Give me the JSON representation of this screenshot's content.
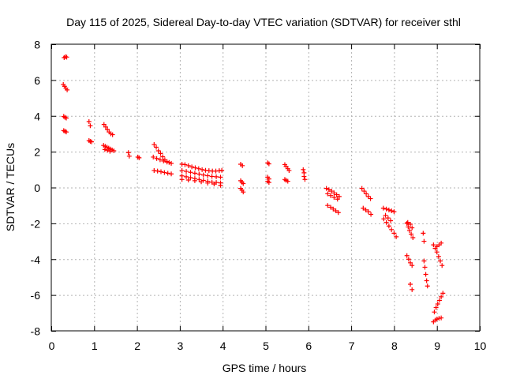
{
  "chart_data": {
    "type": "scatter",
    "title": "Day 115 of 2025, Sidereal Day-to-day VTEC variation (SDTVAR) for receiver sthl",
    "xlabel": "GPS time / hours",
    "ylabel": "SDTVAR / TECUs",
    "xlim": [
      0,
      10
    ],
    "ylim": [
      -8,
      8
    ],
    "xticks": [
      0,
      1,
      2,
      3,
      4,
      5,
      6,
      7,
      8,
      9,
      10
    ],
    "yticks": [
      -8,
      -6,
      -4,
      -2,
      0,
      2,
      4,
      6,
      8
    ],
    "grid": true,
    "marker": "+",
    "colors": {
      "points": "#ff0000",
      "grid": "#b3b3b3",
      "axis": "#000000"
    },
    "series": [
      {
        "name": "sdtvar",
        "points": [
          [
            0.3,
            7.25
          ],
          [
            0.33,
            7.3
          ],
          [
            0.36,
            7.28
          ],
          [
            0.28,
            5.75
          ],
          [
            0.31,
            5.65
          ],
          [
            0.34,
            5.55
          ],
          [
            0.37,
            5.45
          ],
          [
            0.29,
            3.97
          ],
          [
            0.32,
            3.92
          ],
          [
            0.35,
            3.88
          ],
          [
            0.29,
            3.18
          ],
          [
            0.32,
            3.14
          ],
          [
            0.35,
            3.1
          ],
          [
            0.88,
            3.68
          ],
          [
            0.91,
            3.45
          ],
          [
            0.88,
            2.62
          ],
          [
            0.91,
            2.58
          ],
          [
            0.94,
            2.55
          ],
          [
            1.23,
            3.52
          ],
          [
            1.27,
            3.38
          ],
          [
            1.31,
            3.24
          ],
          [
            1.35,
            3.1
          ],
          [
            1.39,
            3.0
          ],
          [
            1.43,
            2.95
          ],
          [
            1.22,
            2.35
          ],
          [
            1.26,
            2.3
          ],
          [
            1.3,
            2.25
          ],
          [
            1.34,
            2.2
          ],
          [
            1.38,
            2.15
          ],
          [
            1.42,
            2.1
          ],
          [
            1.46,
            2.05
          ],
          [
            1.25,
            2.12
          ],
          [
            1.31,
            2.08
          ],
          [
            1.37,
            2.02
          ],
          [
            1.8,
            1.95
          ],
          [
            1.82,
            1.75
          ],
          [
            2.02,
            1.7
          ],
          [
            2.05,
            1.66
          ],
          [
            2.4,
            2.4
          ],
          [
            2.45,
            2.25
          ],
          [
            2.5,
            2.05
          ],
          [
            2.55,
            1.9
          ],
          [
            2.6,
            1.72
          ],
          [
            2.65,
            1.55
          ],
          [
            2.7,
            1.45
          ],
          [
            2.75,
            1.4
          ],
          [
            2.8,
            1.35
          ],
          [
            2.38,
            1.7
          ],
          [
            2.46,
            1.62
          ],
          [
            2.54,
            1.55
          ],
          [
            2.62,
            1.48
          ],
          [
            2.7,
            1.42
          ],
          [
            2.4,
            0.95
          ],
          [
            2.48,
            0.92
          ],
          [
            2.56,
            0.88
          ],
          [
            2.64,
            0.84
          ],
          [
            2.72,
            0.8
          ],
          [
            2.8,
            0.76
          ],
          [
            3.05,
            1.3
          ],
          [
            3.12,
            1.28
          ],
          [
            3.2,
            1.22
          ],
          [
            3.28,
            1.15
          ],
          [
            3.36,
            1.1
          ],
          [
            3.44,
            1.05
          ],
          [
            3.52,
            1.0
          ],
          [
            3.6,
            0.96
          ],
          [
            3.68,
            0.94
          ],
          [
            3.76,
            0.92
          ],
          [
            3.84,
            0.92
          ],
          [
            3.92,
            0.94
          ],
          [
            3.98,
            0.96
          ],
          [
            3.05,
            0.95
          ],
          [
            3.15,
            0.9
          ],
          [
            3.25,
            0.85
          ],
          [
            3.35,
            0.8
          ],
          [
            3.45,
            0.75
          ],
          [
            3.55,
            0.7
          ],
          [
            3.65,
            0.66
          ],
          [
            3.75,
            0.62
          ],
          [
            3.85,
            0.6
          ],
          [
            3.95,
            0.58
          ],
          [
            3.05,
            0.65
          ],
          [
            3.15,
            0.6
          ],
          [
            3.25,
            0.55
          ],
          [
            3.35,
            0.5
          ],
          [
            3.45,
            0.45
          ],
          [
            3.55,
            0.4
          ],
          [
            3.65,
            0.35
          ],
          [
            3.75,
            0.3
          ],
          [
            3.85,
            0.28
          ],
          [
            3.95,
            0.26
          ],
          [
            3.05,
            0.45
          ],
          [
            3.2,
            0.42
          ],
          [
            3.35,
            0.38
          ],
          [
            3.5,
            0.32
          ],
          [
            3.65,
            0.25
          ],
          [
            3.8,
            0.2
          ],
          [
            3.95,
            0.12
          ],
          [
            4.42,
            1.3
          ],
          [
            4.46,
            1.22
          ],
          [
            4.42,
            0.38
          ],
          [
            4.45,
            0.3
          ],
          [
            4.48,
            0.22
          ],
          [
            4.42,
            -0.05
          ],
          [
            4.45,
            -0.15
          ],
          [
            4.48,
            -0.25
          ],
          [
            5.05,
            1.38
          ],
          [
            5.08,
            1.32
          ],
          [
            5.05,
            0.58
          ],
          [
            5.08,
            0.48
          ],
          [
            5.05,
            0.35
          ],
          [
            5.08,
            0.28
          ],
          [
            5.45,
            1.28
          ],
          [
            5.48,
            1.18
          ],
          [
            5.52,
            1.05
          ],
          [
            5.55,
            0.95
          ],
          [
            5.45,
            0.45
          ],
          [
            5.48,
            0.4
          ],
          [
            5.52,
            0.35
          ],
          [
            5.88,
            1.0
          ],
          [
            5.9,
            0.82
          ],
          [
            5.9,
            0.62
          ],
          [
            5.92,
            0.45
          ],
          [
            6.42,
            -0.05
          ],
          [
            6.48,
            -0.12
          ],
          [
            6.54,
            -0.2
          ],
          [
            6.6,
            -0.3
          ],
          [
            6.66,
            -0.4
          ],
          [
            6.72,
            -0.5
          ],
          [
            6.45,
            -0.35
          ],
          [
            6.52,
            -0.45
          ],
          [
            6.6,
            -0.55
          ],
          [
            6.68,
            -0.65
          ],
          [
            6.45,
            -1.0
          ],
          [
            6.52,
            -1.1
          ],
          [
            6.58,
            -1.2
          ],
          [
            6.64,
            -1.3
          ],
          [
            6.7,
            -1.4
          ],
          [
            7.25,
            -0.05
          ],
          [
            7.3,
            -0.2
          ],
          [
            7.35,
            -0.35
          ],
          [
            7.4,
            -0.5
          ],
          [
            7.45,
            -0.62
          ],
          [
            7.28,
            -1.15
          ],
          [
            7.34,
            -1.25
          ],
          [
            7.4,
            -1.35
          ],
          [
            7.46,
            -1.5
          ],
          [
            7.75,
            -1.15
          ],
          [
            7.82,
            -1.2
          ],
          [
            7.88,
            -1.25
          ],
          [
            7.94,
            -1.3
          ],
          [
            8.0,
            -1.35
          ],
          [
            7.76,
            -1.75
          ],
          [
            7.82,
            -1.95
          ],
          [
            7.88,
            -2.15
          ],
          [
            7.94,
            -2.35
          ],
          [
            8.0,
            -2.55
          ],
          [
            8.05,
            -2.75
          ],
          [
            7.8,
            -1.55
          ],
          [
            7.86,
            -1.7
          ],
          [
            7.92,
            -1.85
          ],
          [
            8.3,
            -2.0
          ],
          [
            8.33,
            -2.2
          ],
          [
            8.36,
            -2.4
          ],
          [
            8.4,
            -2.6
          ],
          [
            8.44,
            -2.8
          ],
          [
            8.32,
            -1.95
          ],
          [
            8.38,
            -2.05
          ],
          [
            8.42,
            -2.25
          ],
          [
            8.3,
            -3.8
          ],
          [
            8.34,
            -4.0
          ],
          [
            8.38,
            -4.2
          ],
          [
            8.42,
            -4.35
          ],
          [
            8.38,
            -5.4
          ],
          [
            8.42,
            -5.7
          ],
          [
            8.68,
            -2.55
          ],
          [
            8.7,
            -3.0
          ],
          [
            8.7,
            -4.1
          ],
          [
            8.72,
            -4.45
          ],
          [
            8.74,
            -4.85
          ],
          [
            8.76,
            -5.2
          ],
          [
            8.78,
            -5.5
          ],
          [
            8.92,
            -3.2
          ],
          [
            8.96,
            -3.4
          ],
          [
            9.0,
            -3.6
          ],
          [
            9.04,
            -3.85
          ],
          [
            9.08,
            -4.1
          ],
          [
            9.12,
            -4.35
          ],
          [
            9.0,
            -3.3
          ],
          [
            9.05,
            -3.2
          ],
          [
            9.1,
            -3.1
          ],
          [
            8.94,
            -6.95
          ],
          [
            8.98,
            -6.7
          ],
          [
            9.02,
            -6.5
          ],
          [
            9.06,
            -6.3
          ],
          [
            9.1,
            -6.1
          ],
          [
            9.14,
            -5.9
          ],
          [
            8.92,
            -7.5
          ],
          [
            8.96,
            -7.4
          ],
          [
            9.0,
            -7.35
          ],
          [
            9.05,
            -7.3
          ],
          [
            9.1,
            -7.28
          ]
        ]
      }
    ]
  }
}
